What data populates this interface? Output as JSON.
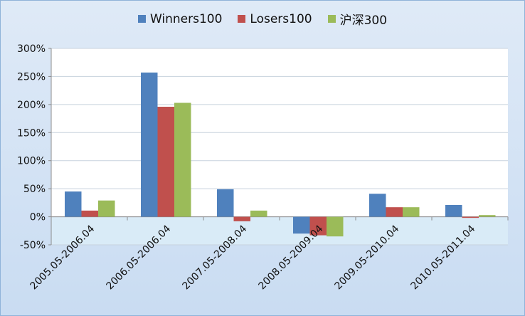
{
  "chart_data": {
    "type": "bar",
    "categories": [
      "2005.05-2006.04",
      "2006.05-2006.04",
      "2007.05-2008.04",
      "2008.05-2009.04",
      "2009.05-2010.04",
      "2010.05-2011.04"
    ],
    "series": [
      {
        "name": "Winners100",
        "values": [
          45,
          257,
          49,
          -30,
          41,
          21
        ]
      },
      {
        "name": "Losers100",
        "values": [
          11,
          196,
          -8,
          -33,
          17,
          -2
        ]
      },
      {
        "name": "沪深300",
        "values": [
          29,
          203,
          11,
          -35,
          17,
          3
        ]
      }
    ],
    "title": "",
    "xlabel": "",
    "ylabel": "",
    "ylim": [
      -50,
      300
    ],
    "yticks": [
      -50,
      0,
      50,
      100,
      150,
      200,
      250,
      300
    ],
    "ytick_suffix": "%",
    "grid": true,
    "legend_position": "top",
    "colors": [
      "#4f81bd",
      "#c0504d",
      "#9bbb59"
    ]
  }
}
